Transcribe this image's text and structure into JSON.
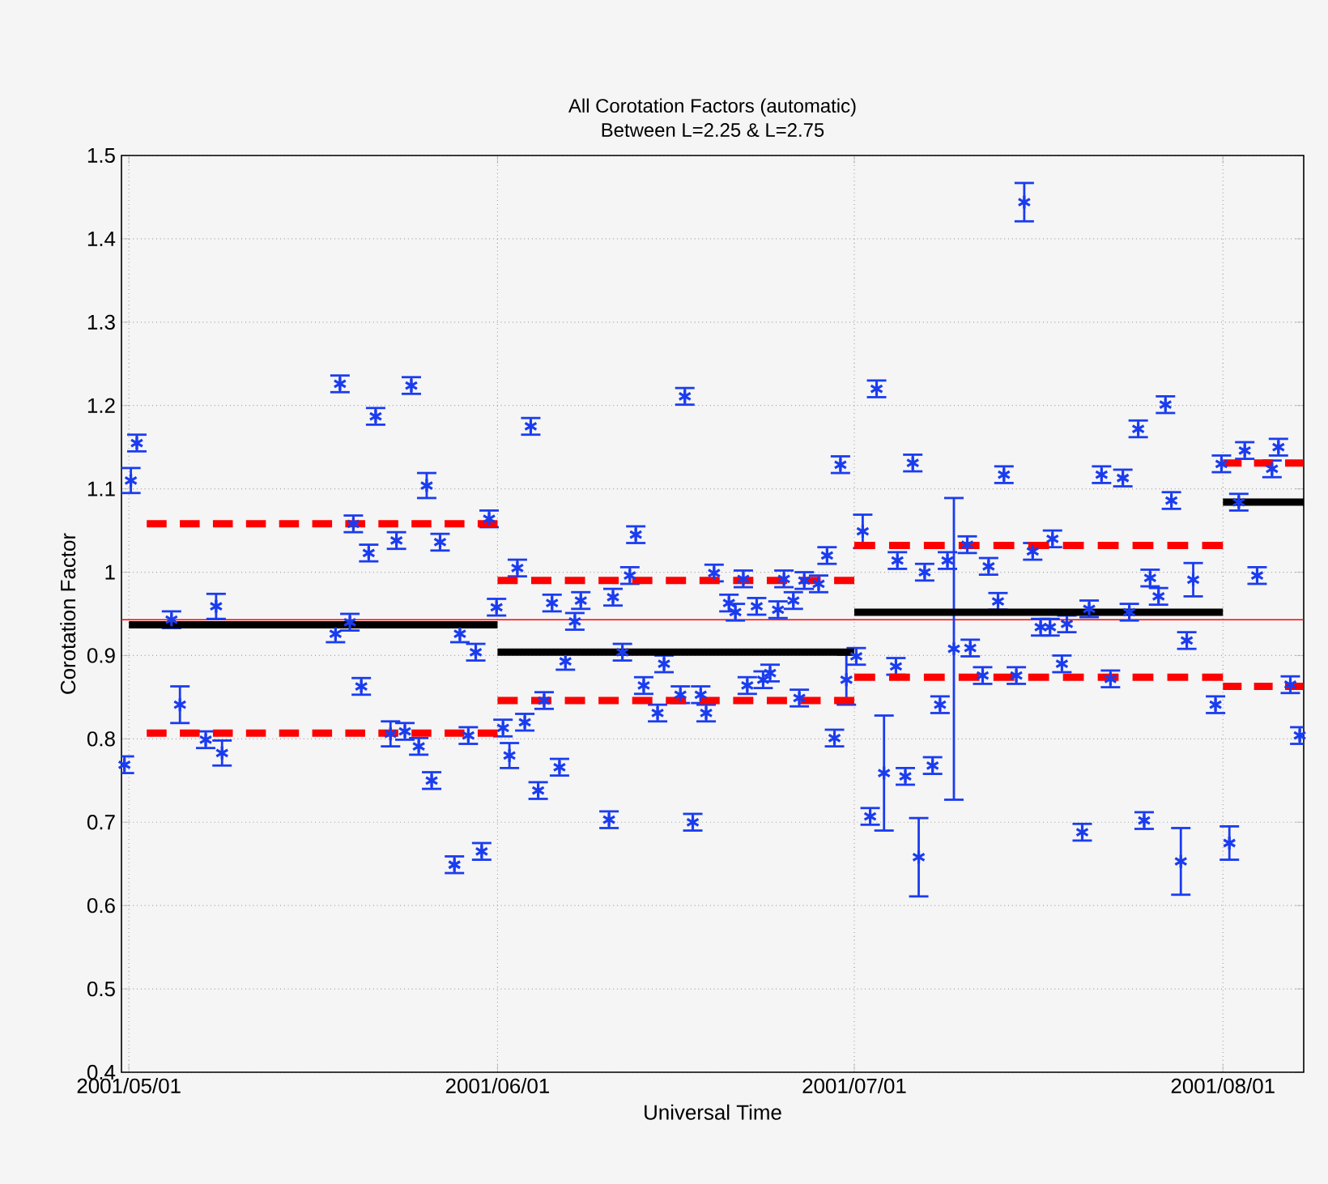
{
  "chart_data": {
    "type": "scatter",
    "title": "All Corotation Factors (automatic)",
    "subtitle": "Between L=2.25 & L=2.75",
    "xlabel": "Universal Time",
    "ylabel": "Corotation Factor",
    "xlim": [
      "2001-04-30T09:00",
      "2001-08-07T19:00"
    ],
    "ylim": [
      0.4,
      1.5
    ],
    "xticks": [
      {
        "value": "2001-05-01",
        "label": "2001/05/01"
      },
      {
        "value": "2001-06-01",
        "label": "2001/06/01"
      },
      {
        "value": "2001-07-01",
        "label": "2001/07/01"
      },
      {
        "value": "2001-08-01",
        "label": "2001/08/01"
      }
    ],
    "yticks": [
      0.4,
      0.5,
      0.6,
      0.7,
      0.8,
      0.9,
      1,
      1.1,
      1.2,
      1.3,
      1.4,
      1.5
    ],
    "grid": true,
    "ref_lines": [
      {
        "axis": "y",
        "value": 0.943,
        "color": "#ff0000"
      }
    ],
    "series": [
      {
        "type": "scatter",
        "color": "#1a3cf0",
        "marker": "cross",
        "x": [
          "2001-04-30T15:00",
          "2001-05-01T04:00",
          "2001-05-01T16:00",
          "2001-05-04T14:00",
          "2001-05-05T07:00",
          "2001-05-07T11:00",
          "2001-05-08T08:00",
          "2001-05-08T20:00",
          "2001-05-18T09:00",
          "2001-05-18T18:00",
          "2001-05-19T14:00",
          "2001-05-19T21:00",
          "2001-05-20T13:00",
          "2001-05-21T04:00",
          "2001-05-21T18:00",
          "2001-05-23T00:00",
          "2001-05-23T12:00",
          "2001-05-24T05:00",
          "2001-05-24T18:00",
          "2001-05-25T09:00",
          "2001-05-26T01:00",
          "2001-05-26T11:00",
          "2001-05-27T04:00",
          "2001-05-28T09:00",
          "2001-05-28T20:00",
          "2001-05-29T13:00",
          "2001-05-30T04:00",
          "2001-05-30T16:00",
          "2001-05-31T07:00",
          "2001-05-31T22:00",
          "2001-06-01T11:00",
          "2001-06-02T00:00",
          "2001-06-02T16:00",
          "2001-06-03T07:00",
          "2001-06-03T19:00",
          "2001-06-04T10:00",
          "2001-06-04T22:00",
          "2001-06-05T14:00",
          "2001-06-06T05:00",
          "2001-06-06T17:00",
          "2001-06-07T12:00",
          "2001-06-08T00:00",
          "2001-06-10T09:00",
          "2001-06-10T17:00",
          "2001-06-11T12:00",
          "2001-06-12T03:00",
          "2001-06-12T15:00",
          "2001-06-13T07:00",
          "2001-06-14T11:00",
          "2001-06-15T00:00",
          "2001-06-16T09:00",
          "2001-06-16T18:00",
          "2001-06-17T10:00",
          "2001-06-18T02:00",
          "2001-06-18T13:00",
          "2001-06-19T05:00",
          "2001-06-20T11:00",
          "2001-06-21T00:00",
          "2001-06-21T16:00",
          "2001-06-22T00:00",
          "2001-06-22T19:00",
          "2001-06-23T08:00",
          "2001-06-23T22:00",
          "2001-06-24T14:00",
          "2001-06-25T02:00",
          "2001-06-25T21:00",
          "2001-06-26T09:00",
          "2001-06-26T19:00",
          "2001-06-28T00:00",
          "2001-06-28T17:00",
          "2001-06-29T08:00",
          "2001-06-29T20:00",
          "2001-06-30T08:00",
          "2001-07-01T04:00",
          "2001-07-01T17:00",
          "2001-07-02T08:00",
          "2001-07-02T21:00",
          "2001-07-03T12:00",
          "2001-07-04T12:00",
          "2001-07-04T15:00",
          "2001-07-05T07:00",
          "2001-07-05T22:00",
          "2001-07-06T10:00",
          "2001-07-06T22:00",
          "2001-07-07T14:00",
          "2001-07-08T05:00",
          "2001-07-08T20:00",
          "2001-07-09T09:00",
          "2001-07-10T12:00",
          "2001-07-10T18:00",
          "2001-07-11T19:00",
          "2001-07-12T07:00",
          "2001-07-13T02:00",
          "2001-07-13T14:00",
          "2001-07-14T15:00",
          "2001-07-15T07:00",
          "2001-07-16T00:00",
          "2001-07-16T16:00",
          "2001-07-17T11:00",
          "2001-07-17T16:00",
          "2001-07-18T11:00",
          "2001-07-18T21:00",
          "2001-07-20T04:00",
          "2001-07-20T18:00",
          "2001-07-21T19:00",
          "2001-07-22T13:00",
          "2001-07-23T14:00",
          "2001-07-24T03:00",
          "2001-07-24T21:00",
          "2001-07-25T09:00",
          "2001-07-25T21:00",
          "2001-07-26T14:00",
          "2001-07-27T04:00",
          "2001-07-27T16:00",
          "2001-07-28T11:00",
          "2001-07-28T23:00",
          "2001-07-29T12:00",
          "2001-07-31T09:00",
          "2001-07-31T21:00",
          "2001-08-01T13:00",
          "2001-08-02T08:00",
          "2001-08-02T20:00",
          "2001-08-03T21:00",
          "2001-08-05T03:00",
          "2001-08-05T16:00",
          "2001-08-06T16:00",
          "2001-08-07T11:00"
        ],
        "values": [
          0.769,
          1.11,
          1.155,
          0.943,
          0.841,
          0.799,
          0.959,
          0.783,
          0.926,
          1.226,
          0.94,
          1.058,
          0.863,
          1.023,
          1.187,
          0.806,
          1.038,
          0.809,
          1.224,
          0.791,
          1.104,
          0.75,
          1.036,
          0.649,
          0.926,
          0.804,
          0.904,
          0.665,
          1.064,
          0.958,
          0.813,
          0.78,
          1.005,
          0.82,
          1.175,
          0.738,
          0.846,
          0.963,
          0.766,
          0.893,
          0.941,
          0.966,
          0.703,
          0.97,
          0.904,
          0.996,
          1.045,
          0.864,
          0.831,
          0.89,
          0.853,
          1.211,
          0.7,
          0.853,
          0.831,
          0.999,
          0.963,
          0.952,
          0.992,
          0.864,
          0.959,
          0.871,
          0.879,
          0.955,
          0.992,
          0.966,
          0.849,
          0.99,
          0.986,
          1.02,
          0.801,
          1.129,
          0.871,
          0.899,
          1.049,
          0.707,
          1.22,
          0.759,
          0.887,
          1.014,
          0.755,
          1.131,
          0.658,
          1.0,
          0.768,
          0.841,
          1.014,
          0.908,
          1.033,
          0.909,
          0.876,
          1.007,
          0.965,
          1.117,
          0.876,
          1.444,
          1.025,
          0.934,
          0.934,
          1.04,
          0.89,
          0.938,
          0.688,
          0.956,
          1.117,
          0.872,
          1.113,
          0.952,
          1.172,
          0.702,
          0.993,
          0.971,
          1.201,
          1.086,
          0.653,
          0.918,
          0.991,
          0.841,
          1.13,
          0.675,
          1.084,
          1.146,
          0.996,
          1.124,
          1.15,
          0.865,
          0.804
        ],
        "errors": [
          0.01,
          0.015,
          0.01,
          0.01,
          0.022,
          0.01,
          0.015,
          0.015,
          0.01,
          0.01,
          0.01,
          0.01,
          0.01,
          0.01,
          0.01,
          0.015,
          0.01,
          0.01,
          0.01,
          0.01,
          0.015,
          0.01,
          0.01,
          0.01,
          0.01,
          0.01,
          0.01,
          0.01,
          0.01,
          0.01,
          0.01,
          0.015,
          0.01,
          0.01,
          0.01,
          0.01,
          0.01,
          0.01,
          0.01,
          0.01,
          0.01,
          0.01,
          0.01,
          0.01,
          0.01,
          0.01,
          0.01,
          0.01,
          0.01,
          0.01,
          0.01,
          0.01,
          0.01,
          0.01,
          0.01,
          0.01,
          0.01,
          0.01,
          0.01,
          0.01,
          0.01,
          0.01,
          0.01,
          0.01,
          0.01,
          0.01,
          0.01,
          0.01,
          0.01,
          0.01,
          0.01,
          0.01,
          0.03,
          0.01,
          0.02,
          0.01,
          0.01,
          0.069,
          0.01,
          0.01,
          0.01,
          0.01,
          0.047,
          0.01,
          0.01,
          0.01,
          0.01,
          0.181,
          0.01,
          0.01,
          0.01,
          0.01,
          0.01,
          0.01,
          0.01,
          0.023,
          0.01,
          0.01,
          0.01,
          0.01,
          0.01,
          0.01,
          0.01,
          0.01,
          0.01,
          0.01,
          0.01,
          0.01,
          0.01,
          0.01,
          0.01,
          0.01,
          0.01,
          0.01,
          0.04,
          0.01,
          0.02,
          0.01,
          0.01,
          0.02,
          0.01,
          0.01,
          0.01,
          0.01,
          0.01,
          0.01,
          0.01
        ]
      },
      {
        "type": "line",
        "color": "#000000",
        "line_style": "solid",
        "x": [
          "2001-05-01",
          "2001-06-01"
        ],
        "values": [
          0.937,
          0.937
        ]
      },
      {
        "type": "line",
        "color": "#000000",
        "line_style": "solid",
        "x": [
          "2001-06-01",
          "2001-07-01"
        ],
        "values": [
          0.904,
          0.904
        ]
      },
      {
        "type": "line",
        "color": "#000000",
        "line_style": "solid",
        "x": [
          "2001-07-01",
          "2001-08-01"
        ],
        "values": [
          0.952,
          0.952
        ]
      },
      {
        "type": "line",
        "color": "#000000",
        "line_style": "solid",
        "x": [
          "2001-08-01",
          "2001-08-07T19:00"
        ],
        "values": [
          1.084,
          1.084
        ]
      },
      {
        "type": "line",
        "color": "#ff0000",
        "line_style": "dashed",
        "x": [
          "2001-05-02T12:00",
          "2001-06-01"
        ],
        "values": [
          1.058,
          1.058
        ]
      },
      {
        "type": "line",
        "color": "#ff0000",
        "line_style": "dashed",
        "x": [
          "2001-05-02T12:00",
          "2001-06-01"
        ],
        "values": [
          0.807,
          0.807
        ]
      },
      {
        "type": "line",
        "color": "#ff0000",
        "line_style": "dashed",
        "x": [
          "2001-06-01",
          "2001-07-01"
        ],
        "values": [
          0.99,
          0.99
        ]
      },
      {
        "type": "line",
        "color": "#ff0000",
        "line_style": "dashed",
        "x": [
          "2001-06-01",
          "2001-07-01"
        ],
        "values": [
          0.846,
          0.846
        ]
      },
      {
        "type": "line",
        "color": "#ff0000",
        "line_style": "dashed",
        "x": [
          "2001-07-01",
          "2001-08-01"
        ],
        "values": [
          1.032,
          1.032
        ]
      },
      {
        "type": "line",
        "color": "#ff0000",
        "line_style": "dashed",
        "x": [
          "2001-07-01",
          "2001-08-01"
        ],
        "values": [
          0.874,
          0.874
        ]
      },
      {
        "type": "line",
        "color": "#ff0000",
        "line_style": "dashed",
        "x": [
          "2001-08-01",
          "2001-08-07T19:00"
        ],
        "values": [
          1.131,
          1.131
        ]
      },
      {
        "type": "line",
        "color": "#ff0000",
        "line_style": "dashed",
        "x": [
          "2001-08-01",
          "2001-08-07T19:00"
        ],
        "values": [
          0.863,
          0.863
        ]
      }
    ]
  }
}
